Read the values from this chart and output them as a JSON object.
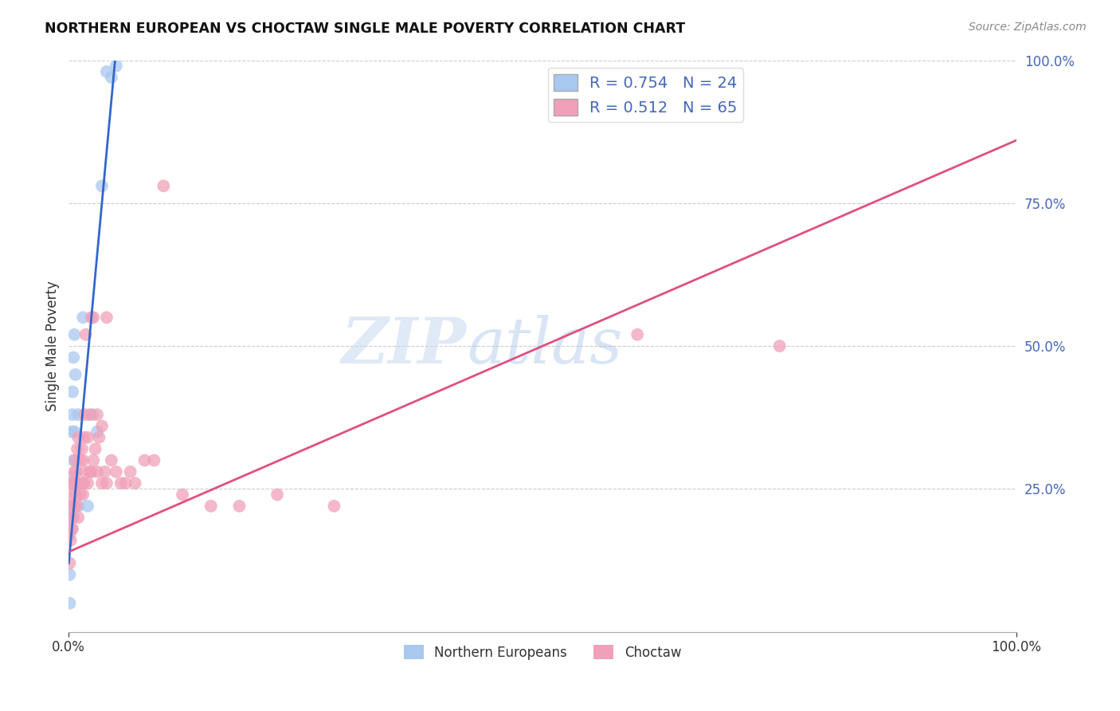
{
  "title": "NORTHERN EUROPEAN VS CHOCTAW SINGLE MALE POVERTY CORRELATION CHART",
  "source": "Source: ZipAtlas.com",
  "ylabel": "Single Male Poverty",
  "watermark_zip": "ZIP",
  "watermark_atlas": "atlas",
  "blue_R": 0.754,
  "blue_N": 24,
  "pink_R": 0.512,
  "pink_N": 65,
  "blue_color": "#A8C8F0",
  "pink_color": "#F0A0B8",
  "blue_line_color": "#3366CC",
  "pink_line_color": "#E05080",
  "right_axis_color": "#4466BB",
  "legend_text_color": "#4466BB",
  "background_color": "#FFFFFF",
  "blue_line_slope": 18.0,
  "blue_line_intercept": 0.12,
  "pink_line_slope": 0.72,
  "pink_line_intercept": 0.14,
  "blue_points_x": [
    0.001,
    0.001,
    0.001,
    0.002,
    0.002,
    0.003,
    0.003,
    0.004,
    0.004,
    0.005,
    0.005,
    0.006,
    0.006,
    0.007,
    0.01,
    0.01,
    0.015,
    0.02,
    0.025,
    0.03,
    0.035,
    0.04,
    0.045,
    0.05
  ],
  "blue_points_y": [
    0.05,
    0.1,
    0.17,
    0.22,
    0.27,
    0.2,
    0.35,
    0.38,
    0.42,
    0.3,
    0.48,
    0.35,
    0.52,
    0.45,
    0.22,
    0.38,
    0.55,
    0.22,
    0.38,
    0.35,
    0.78,
    0.98,
    0.97,
    0.99
  ],
  "pink_points_x": [
    0.001,
    0.001,
    0.002,
    0.002,
    0.003,
    0.003,
    0.004,
    0.004,
    0.005,
    0.005,
    0.006,
    0.006,
    0.007,
    0.007,
    0.008,
    0.008,
    0.009,
    0.009,
    0.01,
    0.01,
    0.01,
    0.012,
    0.012,
    0.014,
    0.014,
    0.015,
    0.015,
    0.016,
    0.016,
    0.017,
    0.017,
    0.018,
    0.02,
    0.02,
    0.022,
    0.022,
    0.024,
    0.024,
    0.026,
    0.026,
    0.028,
    0.03,
    0.03,
    0.032,
    0.035,
    0.035,
    0.038,
    0.04,
    0.04,
    0.045,
    0.05,
    0.055,
    0.06,
    0.065,
    0.07,
    0.08,
    0.09,
    0.1,
    0.12,
    0.15,
    0.18,
    0.22,
    0.28,
    0.6,
    0.75
  ],
  "pink_points_y": [
    0.12,
    0.2,
    0.16,
    0.24,
    0.18,
    0.26,
    0.18,
    0.22,
    0.2,
    0.26,
    0.22,
    0.28,
    0.24,
    0.3,
    0.22,
    0.28,
    0.26,
    0.32,
    0.2,
    0.26,
    0.34,
    0.24,
    0.3,
    0.26,
    0.32,
    0.24,
    0.3,
    0.26,
    0.34,
    0.28,
    0.38,
    0.52,
    0.26,
    0.34,
    0.28,
    0.38,
    0.28,
    0.55,
    0.3,
    0.55,
    0.32,
    0.28,
    0.38,
    0.34,
    0.26,
    0.36,
    0.28,
    0.26,
    0.55,
    0.3,
    0.28,
    0.26,
    0.26,
    0.28,
    0.26,
    0.3,
    0.3,
    0.78,
    0.24,
    0.22,
    0.22,
    0.24,
    0.22,
    0.52,
    0.5
  ],
  "xlim": [
    0.0,
    1.0
  ],
  "ylim": [
    0.0,
    1.0
  ]
}
